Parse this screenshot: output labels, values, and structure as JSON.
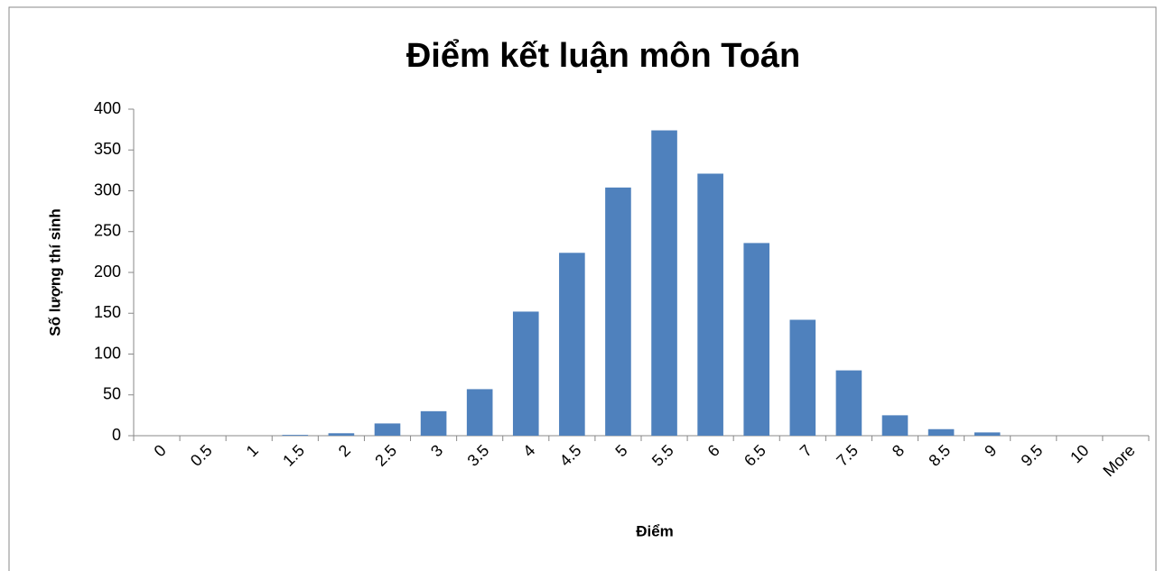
{
  "chart_data": {
    "type": "bar",
    "title": "Điểm kết luận môn Toán",
    "x_label": "Điểm",
    "y_label": "Số lượng thí sinh",
    "categories": [
      "0",
      "0.5",
      "1",
      "1.5",
      "2",
      "2.5",
      "3",
      "3.5",
      "4",
      "4.5",
      "5",
      "5.5",
      "6",
      "6.5",
      "7",
      "7.5",
      "8",
      "8.5",
      "9",
      "9.5",
      "10",
      "More"
    ],
    "values": [
      0,
      0,
      0,
      1,
      3,
      15,
      30,
      57,
      152,
      224,
      304,
      374,
      321,
      236,
      142,
      80,
      25,
      8,
      4,
      0,
      0,
      0
    ],
    "color": "#4f81bd",
    "ylim": [
      0,
      400
    ],
    "yticks": [
      0,
      50,
      100,
      150,
      200,
      250,
      300,
      350,
      400
    ],
    "grid": false
  }
}
